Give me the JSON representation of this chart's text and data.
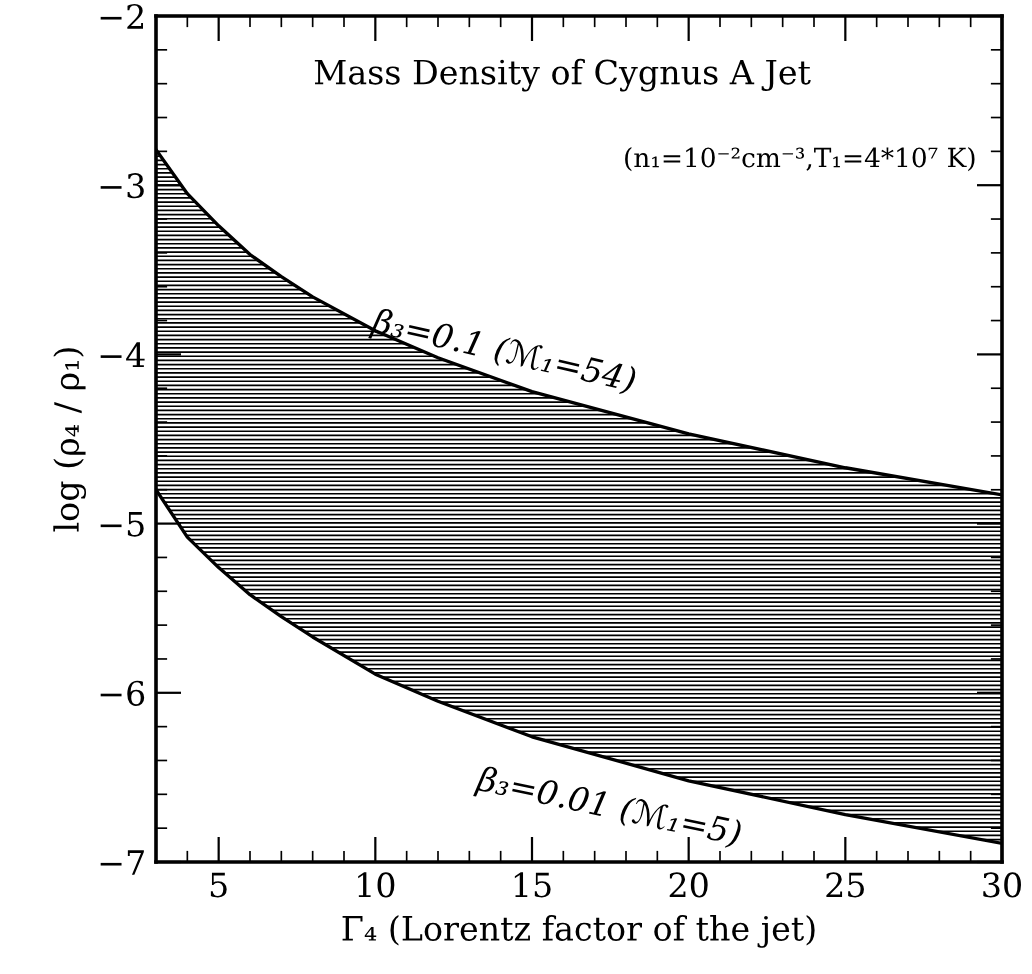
{
  "chart_data": {
    "type": "line",
    "title": "Mass Density of Cygnus A Jet",
    "subtitle": "(n₁=10⁻²cm⁻³,T₁=4*10⁷ K)",
    "xlabel": "Γ₄ (Lorentz factor of the jet)",
    "ylabel": "log (ρ₄ / ρ₁)",
    "x": [
      3,
      4,
      5,
      6,
      7,
      8,
      10,
      12,
      15,
      20,
      25,
      30
    ],
    "series": [
      {
        "color": "#000000",
        "values": [
          -2.79,
          -3.05,
          -3.24,
          -3.41,
          -3.54,
          -3.66,
          -3.86,
          -4.02,
          -4.22,
          -4.47,
          -4.67,
          -4.83
        ],
        "lower": [
          -4.8,
          -5.08,
          -5.26,
          -5.42,
          -5.55,
          -5.67,
          -5.89,
          -6.05,
          -6.26,
          -6.52,
          -6.72,
          -6.89
        ],
        "upper": [
          -2.79,
          -3.05,
          -3.24,
          -3.41,
          -3.54,
          -3.66,
          -3.86,
          -4.02,
          -4.22,
          -4.47,
          -4.67,
          -4.83
        ]
      },
      {
        "color": "#000000",
        "values": [
          -4.8,
          -5.08,
          -5.26,
          -5.42,
          -5.55,
          -5.67,
          -5.89,
          -6.05,
          -6.26,
          -6.52,
          -6.72,
          -6.89
        ]
      }
    ],
    "annotations": [
      {
        "text": "β₃=0.1 (ℳ₁=54)",
        "x": 15,
        "y": -4.22
      },
      {
        "text": "β₃=0.01 (ℳ₁=5)",
        "x": 18,
        "y": -6.42
      }
    ],
    "xlim": [
      3,
      30
    ],
    "ylim": [
      -7,
      -2
    ],
    "xticks": [
      5,
      10,
      15,
      20,
      25,
      30
    ],
    "yticks": [
      -7,
      -6,
      -5,
      -4,
      -3,
      -2
    ],
    "grid": false
  }
}
